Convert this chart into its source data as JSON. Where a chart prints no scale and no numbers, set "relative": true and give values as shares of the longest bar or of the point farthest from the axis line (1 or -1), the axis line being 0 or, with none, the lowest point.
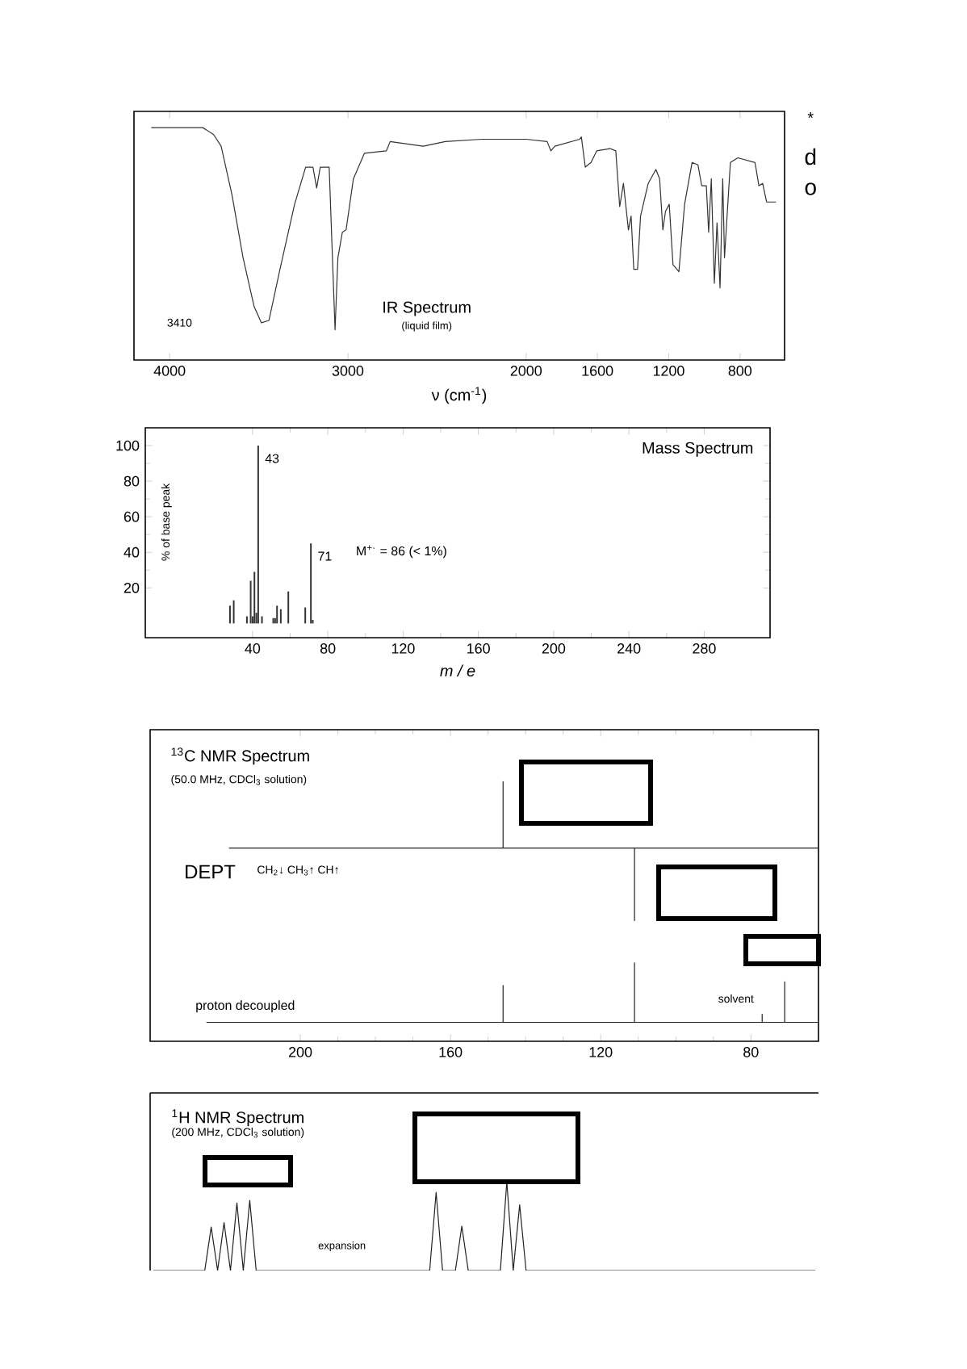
{
  "chart_data": [
    {
      "type": "line",
      "title": "IR Spectrum",
      "subtitle": "(liquid film)",
      "xlabel": "ν (cm$^{-1}$)",
      "relative": true,
      "color": "#333333",
      "xlim": [
        4200,
        550
      ],
      "xticks": [
        4000,
        3000,
        2000,
        1600,
        1200,
        800
      ],
      "x": [
        4103,
        3814,
        3753,
        3711,
        3650,
        3588,
        3526,
        3485,
        3443,
        3381,
        3299,
        3237,
        3196,
        3175,
        3155,
        3105,
        3072,
        3056,
        3031,
        3010,
        2969,
        2907,
        2784,
        2763,
        2577,
        2454,
        2247,
        2000,
        1882,
        1861,
        1839,
        1700,
        1690,
        1668,
        1636,
        1604,
        1529,
        1497,
        1475,
        1454,
        1426,
        1411,
        1396,
        1375,
        1358,
        1315,
        1272,
        1251,
        1233,
        1218,
        1197,
        1176,
        1143,
        1111,
        1069,
        1036,
        1015,
        989,
        976,
        961,
        944,
        929,
        912,
        897,
        887,
        854,
        812,
        716,
        694,
        673,
        651,
        598
      ],
      "values": [
        1.0,
        1.0,
        0.97,
        0.92,
        0.71,
        0.44,
        0.23,
        0.16,
        0.17,
        0.39,
        0.67,
        0.83,
        0.83,
        0.74,
        0.83,
        0.83,
        0.13,
        0.44,
        0.55,
        0.56,
        0.78,
        0.89,
        0.9,
        0.94,
        0.92,
        0.94,
        0.95,
        0.95,
        0.94,
        0.9,
        0.92,
        0.95,
        0.96,
        0.83,
        0.85,
        0.9,
        0.91,
        0.9,
        0.66,
        0.76,
        0.56,
        0.62,
        0.39,
        0.39,
        0.62,
        0.76,
        0.82,
        0.78,
        0.56,
        0.64,
        0.67,
        0.41,
        0.38,
        0.67,
        0.85,
        0.84,
        0.75,
        0.75,
        0.55,
        0.78,
        0.33,
        0.59,
        0.31,
        0.78,
        0.44,
        0.85,
        0.87,
        0.85,
        0.75,
        0.76,
        0.68,
        0.68
      ],
      "annotations": [
        "3410",
        "*",
        "d",
        "o"
      ]
    },
    {
      "type": "bar",
      "title": "Mass Spectrum",
      "xlabel": "m / e",
      "ylabel": "% of base peak",
      "color": "#333333",
      "xlim": [
        -17,
        315
      ],
      "xticks": [
        40,
        80,
        120,
        160,
        200,
        240,
        280
      ],
      "ylim": [
        -8,
        110
      ],
      "yticks": [
        20,
        40,
        60,
        80,
        100
      ],
      "x": [
        28,
        30,
        37,
        39,
        40,
        41,
        42,
        43,
        45,
        51,
        52,
        53,
        55,
        59,
        68,
        71,
        72
      ],
      "values": [
        10,
        13,
        4,
        24,
        4,
        29,
        6,
        100,
        4,
        3,
        3,
        10,
        8,
        18,
        9,
        45,
        2
      ],
      "annotations": [
        {
          "text": "43",
          "x": 43,
          "y": 100
        },
        {
          "text": "71",
          "x": 71,
          "y": 45
        },
        "M$^{+·}$ = 86 (< 1%)"
      ]
    },
    {
      "type": "line",
      "title": "$^{13}$C NMR Spectrum",
      "subtitle": "(50.0 MHz, CDCl$_{3}$ solution)",
      "relative": true,
      "xlim": [
        240,
        62
      ],
      "xticks": [
        200,
        160,
        120,
        80
      ],
      "series": [
        {
          "name": "DEPT",
          "color": "#222222",
          "x": [
            219,
            146,
            146,
            146,
            111,
            111,
            111,
            62
          ],
          "values": [
            0.744,
            0.744,
            1.0,
            0.744,
            0.744,
            0.465,
            0.744,
            0.744
          ]
        },
        {
          "name": "proton decoupled",
          "color": "#222222",
          "x": [
            225,
            146,
            146,
            146,
            111,
            111,
            111,
            77,
            77,
            77,
            71,
            71,
            71,
            62
          ],
          "values": [
            0.073,
            0.073,
            0.215,
            0.073,
            0.073,
            0.302,
            0.073,
            0.073,
            0.104,
            0.073,
            0.073,
            0.229,
            0.073,
            0.073
          ]
        }
      ],
      "annotations": [
        "CH$_{2}$↓ CH$_{3}$↑ CH↑",
        {
          "text": "solvent",
          "x": 77,
          "y": 0.104
        }
      ]
    },
    {
      "type": "line",
      "title": "$^{1}$H NMR Spectrum",
      "subtitle": "(200 MHz, CDCl$_{3}$ solution)",
      "relative": true,
      "color": "#222222",
      "categories": [
        null,
        null,
        null,
        null,
        null,
        null,
        null,
        null,
        null,
        null,
        null,
        null,
        null,
        null,
        null,
        null,
        null,
        null,
        null,
        null,
        null,
        null,
        null,
        null,
        null,
        null,
        null,
        null,
        null,
        null,
        null,
        null,
        null,
        null,
        null,
        null,
        null,
        null,
        null,
        null,
        null,
        null,
        null,
        null,
        null,
        null,
        null,
        null,
        null,
        null,
        null,
        null,
        null,
        null,
        null,
        null,
        null,
        null,
        null,
        null,
        null,
        null,
        null,
        null,
        null,
        null,
        null,
        null,
        null,
        null,
        null,
        null,
        null,
        null,
        null,
        null,
        null,
        null,
        null,
        null,
        null,
        null,
        null,
        null,
        null,
        null,
        null,
        null,
        null,
        null,
        null,
        null,
        null,
        null,
        null,
        null,
        null,
        null,
        null,
        null,
        null,
        null,
        null,
        null
      ],
      "values": [
        0,
        0,
        0,
        0,
        0,
        0,
        0,
        0,
        0,
        0.49,
        0,
        0.54,
        0,
        0.76,
        0,
        0.79,
        0,
        0,
        0,
        0,
        0,
        0,
        0,
        0,
        0,
        0,
        0,
        0,
        0,
        0,
        0,
        0,
        0,
        0,
        0,
        0,
        0,
        0,
        0,
        0,
        0,
        0,
        0,
        0,
        0.88,
        0,
        0,
        0,
        0.5,
        0,
        0,
        0,
        0,
        0,
        0,
        1.0,
        0,
        0.74,
        0,
        0,
        0,
        0,
        0,
        0,
        0,
        0,
        0,
        0,
        0,
        0,
        0,
        0,
        0,
        0,
        0,
        0,
        0,
        0,
        0,
        0,
        0,
        0,
        0,
        0,
        0,
        0,
        0,
        0,
        0,
        0,
        0,
        0,
        0,
        0,
        0,
        0,
        0,
        0,
        0,
        0,
        0,
        0,
        0,
        0
      ],
      "annotations": [
        "expansion"
      ]
    }
  ]
}
